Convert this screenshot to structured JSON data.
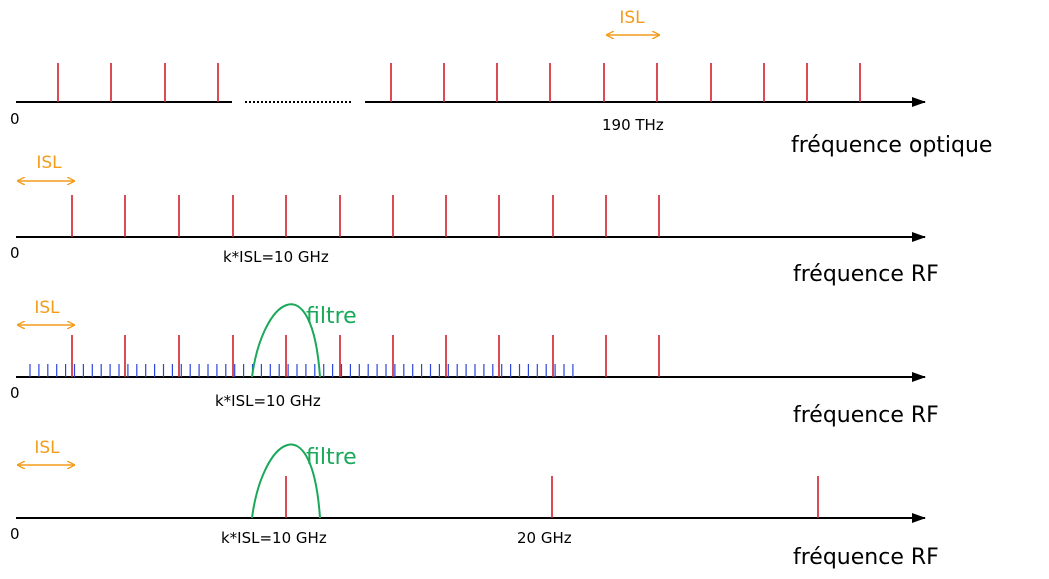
{
  "colors": {
    "line": "#d11f2a",
    "isl": "#f39c1b",
    "filter": "#1aa85a",
    "fine_line": "#2b45e0",
    "axis": "#000000"
  },
  "panel1": {
    "zero_label": "0",
    "tick_label": "190 THz",
    "isl_label": "ISL",
    "axis_label": "fréquence optique"
  },
  "panel2": {
    "zero_label": "0",
    "tick_label": "k*ISL=10 GHz",
    "isl_label": "ISL",
    "axis_label": "fréquence RF"
  },
  "panel3": {
    "zero_label": "0",
    "tick_label": "k*ISL=10 GHz",
    "isl_label": "ISL",
    "filter_label": "filtre",
    "axis_label": "fréquence RF"
  },
  "panel4": {
    "zero_label": "0",
    "tick_label": "k*ISL=10 GHz",
    "tick_label_2": "20 GHz",
    "isl_label": "ISL",
    "filter_label": "filtre",
    "axis_label": "fréquence RF"
  }
}
